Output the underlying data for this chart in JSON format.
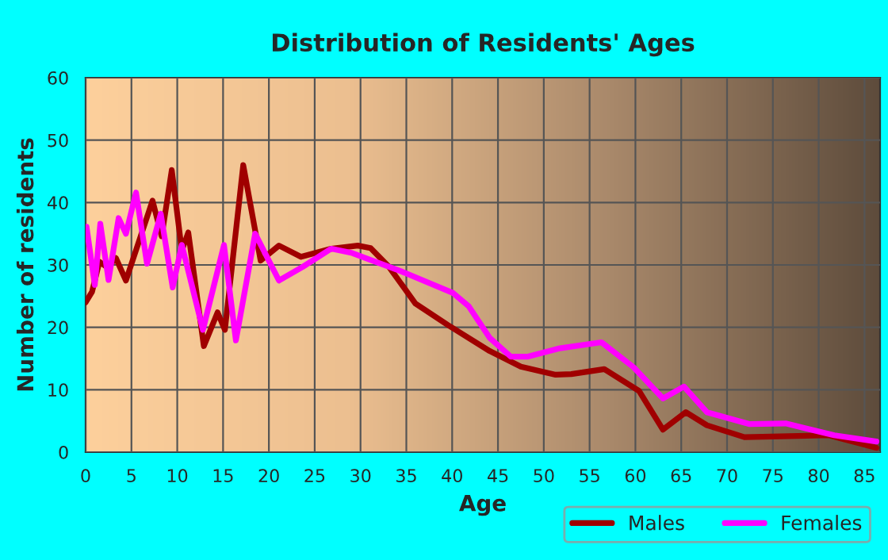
{
  "chart_data": {
    "type": "line",
    "title": "Distribution of Residents' Ages",
    "xlabel": "Age",
    "ylabel": "Number of residents",
    "xlim": [
      0,
      86.7
    ],
    "xticks": [
      0,
      5,
      10,
      15,
      20,
      25,
      30,
      35,
      40,
      45,
      50,
      55,
      60,
      65,
      70,
      75,
      80,
      85
    ],
    "ylim": [
      0,
      60
    ],
    "yticks": [
      0,
      10,
      20,
      30,
      40,
      50,
      60
    ],
    "grid": true,
    "legend": "bottom",
    "line_style": "solid",
    "marker": "none",
    "series": [
      {
        "name": "Males",
        "color": "#a00000",
        "x": [
          0,
          0.7,
          1.5,
          2.4,
          3.3,
          4.4,
          7.3,
          8.3,
          9.4,
          10.5,
          11.2,
          12.9,
          14.4,
          15.2,
          17.2,
          19.1,
          21.1,
          23.5,
          26.8,
          29.7,
          31.1,
          33.1,
          36,
          39.5,
          44.1,
          47.5,
          51.3,
          53,
          56.6,
          60.4,
          63,
          65.5,
          67.8,
          71.9,
          81.1,
          86.3
        ],
        "values": [
          24,
          25.7,
          30.5,
          29.6,
          31.1,
          27.5,
          40.3,
          34.6,
          45.2,
          32.3,
          35.2,
          17,
          22.4,
          19.6,
          46,
          30.7,
          33.1,
          31.3,
          32.6,
          33.1,
          32.7,
          29.7,
          23.8,
          20.4,
          16.2,
          13.7,
          12.4,
          12.5,
          13.3,
          9.8,
          3.6,
          6.4,
          4.3,
          2.4,
          2.7,
          0.7
        ]
      },
      {
        "name": "Females",
        "color": "#ff00ff",
        "x": [
          0.1,
          1,
          1.6,
          2.5,
          3.6,
          4.4,
          5.5,
          6.7,
          8.2,
          9.5,
          10.5,
          12.8,
          15.1,
          16.4,
          18.5,
          21.1,
          23.7,
          26.8,
          29.1,
          34.4,
          40.1,
          41.8,
          44.1,
          46.4,
          48.2,
          51.6,
          56.3,
          59.8,
          63,
          65.3,
          67.8,
          72.4,
          76.4,
          81.7,
          86.3
        ],
        "values": [
          36.1,
          26.8,
          36.6,
          27.6,
          37.5,
          35,
          41.6,
          30.2,
          38.2,
          26.4,
          33.2,
          19.6,
          33.2,
          17.9,
          35,
          27.5,
          29.7,
          32.6,
          31.9,
          29,
          25.5,
          23.4,
          18.3,
          15.3,
          15.3,
          16.6,
          17.6,
          13.6,
          8.6,
          10.5,
          6.4,
          4.5,
          4.6,
          2.7,
          1.7
        ]
      }
    ]
  }
}
